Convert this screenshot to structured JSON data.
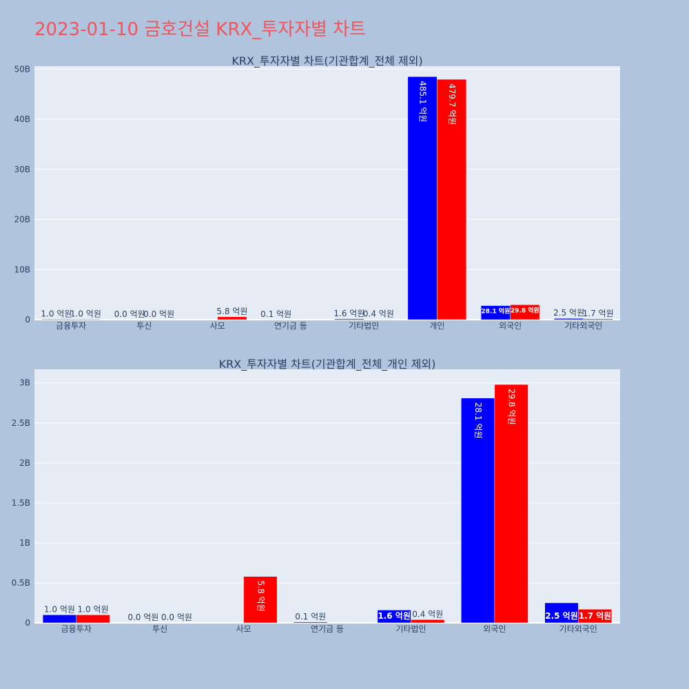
{
  "title": "2023-01-10 금호건설 KRX_투자자별 차트",
  "colors": {
    "buy": "#0000ff",
    "sell": "#ff0000",
    "plot_bg": "#e5ecf6",
    "page_bg": "#b0c4de",
    "title": "#f2545b"
  },
  "chart_data": [
    {
      "type": "bar",
      "title": "KRX_투자자별 차트(기관합계_전체 제외)",
      "categories": [
        "금융투자",
        "투신",
        "사모",
        "연기금 등",
        "기타법인",
        "개인",
        "외국인",
        "기타외국인"
      ],
      "series": [
        {
          "values": [
            0.1,
            0.0,
            0.0,
            0.01,
            0.16,
            48.51,
            2.81,
            0.25
          ],
          "labels": [
            "1.0 억원",
            "0.0 억원",
            "",
            "0.1 억원",
            "1.6 억원",
            "485.1 억원",
            "28.1 억원",
            "2.5 억원"
          ]
        },
        {
          "values": [
            0.1,
            0.0,
            0.58,
            0.0,
            0.04,
            47.97,
            2.98,
            0.17
          ],
          "labels": [
            "1.0 억원",
            "0.0 억원",
            "5.8 억원",
            "",
            "0.4 억원",
            "479.7 억원",
            "29.8 억원",
            "1.7 억원"
          ]
        }
      ],
      "ylim": [
        0,
        50.6
      ],
      "yticks": [
        0,
        10,
        20,
        30,
        40,
        50
      ],
      "ytick_labels": [
        "0",
        "10B",
        "20B",
        "30B",
        "40B",
        "50B"
      ],
      "grid": true,
      "legend": "none"
    },
    {
      "type": "bar",
      "title": "KRX_투자자별 차트(기관합계_전체_개인 제외)",
      "categories": [
        "금융투자",
        "투신",
        "사모",
        "연기금 등",
        "기타법인",
        "외국인",
        "기타외국인"
      ],
      "series": [
        {
          "values": [
            0.1,
            0.0,
            0.0,
            0.01,
            0.16,
            2.81,
            0.25
          ],
          "labels": [
            "1.0 억원",
            "0.0 억원",
            "",
            "0.1 억원",
            "1.6 억원",
            "28.1 억원",
            "2.5 억원"
          ]
        },
        {
          "values": [
            0.1,
            0.0,
            0.58,
            0.0,
            0.04,
            2.98,
            0.17
          ],
          "labels": [
            "1.0 억원",
            "0.0 억원",
            "5.8 억원",
            "",
            "0.4 억원",
            "29.8 억원",
            "1.7 억원"
          ]
        }
      ],
      "ylim": [
        0,
        3.17
      ],
      "yticks": [
        0,
        0.5,
        1,
        1.5,
        2,
        2.5,
        3
      ],
      "ytick_labels": [
        "0",
        "0.5B",
        "1B",
        "1.5B",
        "2B",
        "2.5B",
        "3B"
      ],
      "grid": true,
      "legend": "none"
    }
  ]
}
